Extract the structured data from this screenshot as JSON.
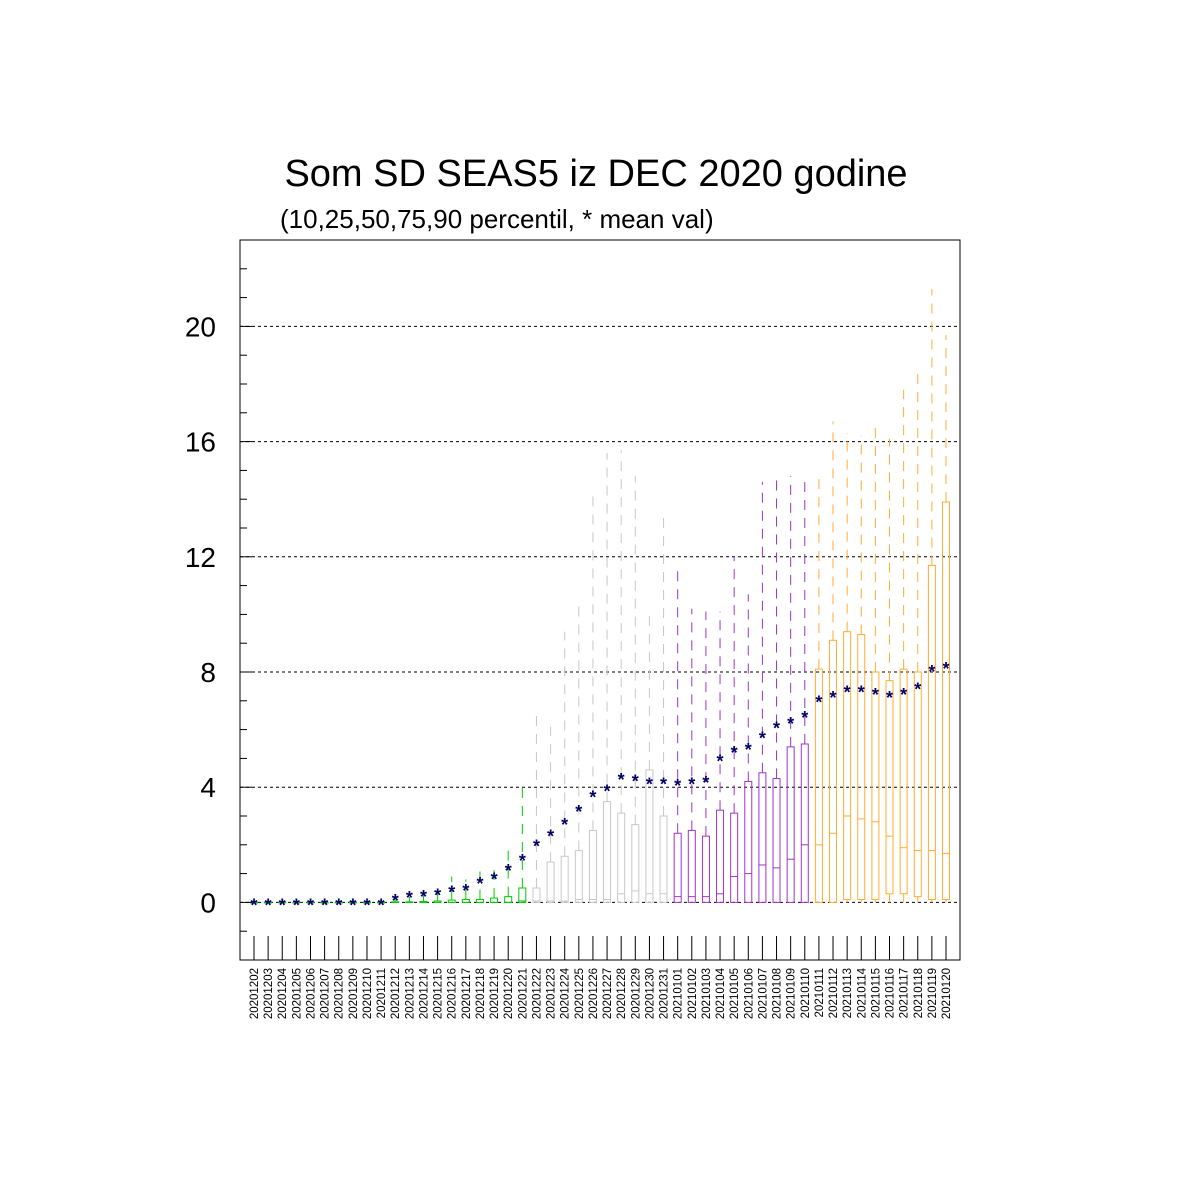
{
  "chart_data": {
    "type": "boxplot",
    "title": "Som SD SEAS5 iz DEC 2020 godine",
    "subtitle": "(10,25,50,75,90 percentil, * mean val)",
    "xlabel": "",
    "ylabel": "",
    "ylim": [
      -2,
      23
    ],
    "yticks": [
      0,
      4,
      8,
      12,
      16,
      20
    ],
    "ytick_labels": [
      "0",
      "4",
      "8",
      "12",
      "16",
      "20"
    ],
    "grid": "horizontal dashed at major ticks",
    "categories": [
      "20201202",
      "20201203",
      "20201204",
      "20201205",
      "20201206",
      "20201207",
      "20201208",
      "20201209",
      "20201210",
      "20201211",
      "20201212",
      "20201213",
      "20201214",
      "20201215",
      "20201216",
      "20201217",
      "20201218",
      "20201219",
      "20201220",
      "20201221",
      "20201222",
      "20201223",
      "20201224",
      "20201225",
      "20201226",
      "20201227",
      "20201228",
      "20201229",
      "20201230",
      "20201231",
      "20210101",
      "20210102",
      "20210103",
      "20210104",
      "20210105",
      "20210106",
      "20210107",
      "20210108",
      "20210109",
      "20210110",
      "20210111",
      "20210112",
      "20210113",
      "20210114",
      "20210115",
      "20210116",
      "20210117",
      "20210118",
      "20210119",
      "20210120"
    ],
    "colors": [
      "#00cc00",
      "#c8c8c8",
      "#a033cc",
      "#ffad33"
    ],
    "color_index": [
      0,
      0,
      0,
      0,
      0,
      0,
      0,
      0,
      0,
      0,
      0,
      0,
      0,
      0,
      0,
      0,
      0,
      0,
      0,
      0,
      1,
      1,
      1,
      1,
      1,
      1,
      1,
      1,
      1,
      1,
      2,
      2,
      2,
      2,
      2,
      2,
      2,
      2,
      2,
      2,
      3,
      3,
      3,
      3,
      3,
      3,
      3,
      3,
      3,
      3
    ],
    "mean_color": "#000066",
    "p10": [
      0,
      0,
      0,
      0,
      0,
      0,
      0,
      0,
      0,
      0,
      0,
      0,
      0,
      0,
      0,
      0,
      0,
      0,
      0,
      0,
      0,
      0,
      0,
      0,
      0,
      0,
      0,
      0,
      0,
      0,
      0,
      0,
      0,
      0,
      0,
      0,
      0,
      0,
      0,
      0,
      0,
      0,
      0,
      0,
      0,
      0,
      0,
      0,
      0,
      0
    ],
    "p25": [
      0,
      0,
      0,
      0,
      0,
      0,
      0,
      0,
      0,
      0,
      0,
      0,
      0,
      0,
      0,
      0,
      0,
      0,
      0,
      0,
      0,
      0,
      0,
      0,
      0,
      0,
      0,
      0,
      0,
      0,
      0,
      0,
      0,
      0,
      0,
      0,
      0,
      0,
      0,
      0,
      0,
      0,
      0.1,
      0.1,
      0.1,
      0.3,
      0.3,
      0.2,
      0.1,
      0.1
    ],
    "p50": [
      0,
      0,
      0,
      0,
      0,
      0,
      0,
      0,
      0,
      0,
      0,
      0,
      0,
      0,
      0,
      0,
      0,
      0,
      0,
      0.05,
      0.05,
      0.05,
      0.05,
      0.1,
      0.1,
      0.1,
      0.3,
      0.4,
      0.3,
      0.3,
      0.2,
      0.2,
      0.2,
      0.3,
      0.9,
      1.0,
      1.3,
      1.2,
      1.5,
      2.0,
      2.0,
      2.4,
      3.0,
      2.9,
      2.8,
      2.3,
      1.9,
      1.8,
      1.8,
      1.7
    ],
    "p75": [
      0,
      0,
      0,
      0,
      0,
      0,
      0,
      0,
      0,
      0,
      0.02,
      0.02,
      0.03,
      0.05,
      0.08,
      0.1,
      0.1,
      0.15,
      0.2,
      0.5,
      0.5,
      1.4,
      1.6,
      1.8,
      2.5,
      3.5,
      3.1,
      2.7,
      4.6,
      3.0,
      2.4,
      2.5,
      2.3,
      3.2,
      3.1,
      4.2,
      4.5,
      4.3,
      5.4,
      5.5,
      8.1,
      9.1,
      9.4,
      9.3,
      8.0,
      7.7,
      8.1,
      8.0,
      11.7,
      13.9
    ],
    "p90": [
      0,
      0,
      0,
      0,
      0,
      0,
      0,
      0,
      0,
      0,
      0.1,
      0.2,
      0.3,
      0.5,
      0.9,
      0.8,
      1.1,
      1.4,
      2.0,
      4.0,
      6.5,
      6.1,
      9.4,
      10.5,
      14.2,
      15.6,
      15.7,
      14.8,
      10.0,
      13.6,
      11.5,
      10.2,
      10.1,
      10.1,
      12.0,
      10.7,
      14.6,
      14.8,
      14.8,
      14.8,
      14.8,
      16.7,
      16.3,
      16.2,
      16.6,
      16.1,
      17.8,
      18.6,
      21.3,
      19.7
    ],
    "mean": [
      0,
      0,
      0,
      0,
      0,
      0,
      0,
      0,
      0,
      0,
      0.15,
      0.25,
      0.3,
      0.35,
      0.45,
      0.5,
      0.75,
      0.9,
      1.2,
      1.55,
      2.05,
      2.4,
      2.8,
      3.25,
      3.75,
      3.95,
      4.35,
      4.3,
      4.2,
      4.2,
      4.15,
      4.2,
      4.25,
      5.0,
      5.3,
      5.4,
      5.8,
      6.15,
      6.3,
      6.5,
      7.05,
      7.2,
      7.4,
      7.4,
      7.3,
      7.2,
      7.3,
      7.5,
      8.1,
      8.2
    ]
  }
}
